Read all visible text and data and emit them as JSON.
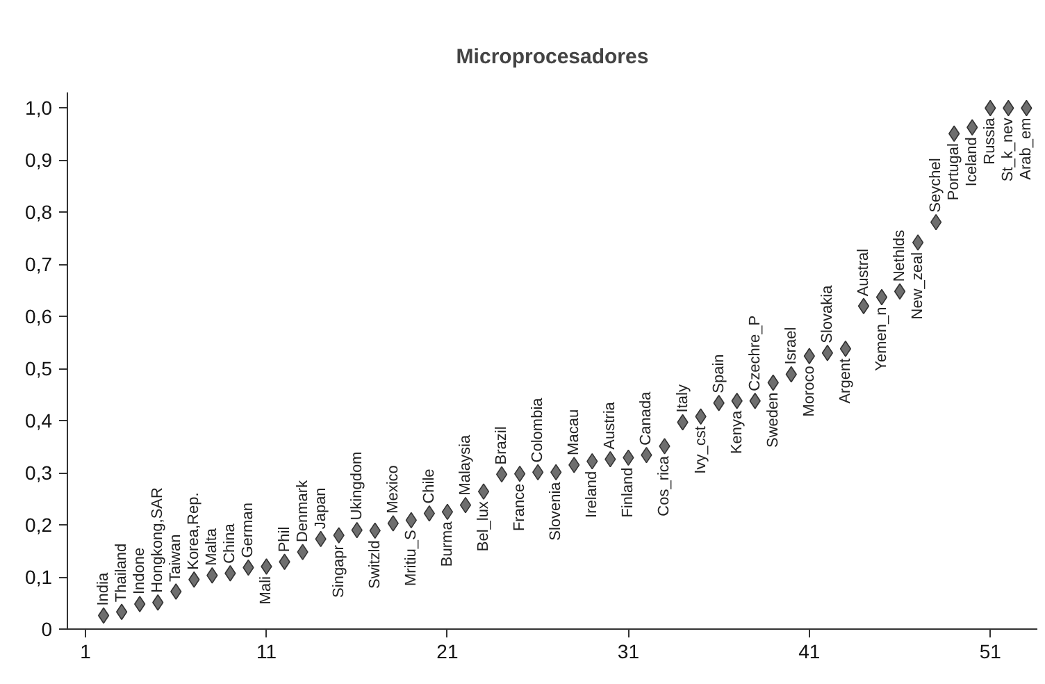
{
  "chart_data": {
    "type": "scatter",
    "title": "Microprocesadores",
    "x": [
      2,
      3,
      4,
      5,
      6,
      7,
      8,
      9,
      10,
      11,
      12,
      13,
      14,
      15,
      16,
      17,
      18,
      19,
      20,
      21,
      22,
      23,
      24,
      25,
      26,
      27,
      28,
      29,
      30,
      31,
      32,
      33,
      34,
      35,
      36,
      37,
      38,
      39,
      40,
      41,
      42,
      43,
      44,
      45,
      46,
      47,
      48,
      49,
      50,
      51,
      52,
      53
    ],
    "values": [
      0.026,
      0.033,
      0.048,
      0.051,
      0.072,
      0.095,
      0.103,
      0.107,
      0.118,
      0.12,
      0.129,
      0.148,
      0.173,
      0.18,
      0.19,
      0.189,
      0.203,
      0.209,
      0.222,
      0.225,
      0.238,
      0.264,
      0.297,
      0.298,
      0.301,
      0.301,
      0.315,
      0.322,
      0.326,
      0.329,
      0.334,
      0.351,
      0.397,
      0.408,
      0.434,
      0.438,
      0.438,
      0.473,
      0.489,
      0.524,
      0.53,
      0.538,
      0.62,
      0.637,
      0.648,
      0.742,
      0.781,
      0.951,
      0.963,
      1.0,
      1.0,
      1.0
    ],
    "color": "#6e6e6e",
    "marker": "diamond",
    "grid": false,
    "xlim": [
      0,
      53.6
    ],
    "ylim": [
      0,
      1.03
    ],
    "xticks": [
      1,
      11,
      21,
      31,
      41,
      51
    ],
    "yticks": [
      0,
      {
        "value": 0.1,
        "label": "0,1"
      },
      {
        "value": 0.2,
        "label": "0,2"
      },
      {
        "value": 0.3,
        "label": "0,3"
      },
      {
        "value": 0.4,
        "label": "0,4"
      },
      {
        "value": 0.5,
        "label": "0,5"
      },
      {
        "value": 0.6,
        "label": "0,6"
      },
      {
        "value": 0.7,
        "label": "0,7"
      },
      {
        "value": 0.8,
        "label": "0,8"
      },
      {
        "value": 0.9,
        "label": "0,9"
      },
      {
        "value": 1.0,
        "label": "1,0"
      }
    ],
    "annotations": [
      {
        "text": "India",
        "x": 2,
        "y": 0.026
      },
      {
        "text": "Thailand",
        "x": 3,
        "y": 0.033
      },
      {
        "text": "Indone",
        "x": 4,
        "y": 0.048
      },
      {
        "text": "Hongkong,SAR",
        "x": 5,
        "y": 0.051
      },
      {
        "text": "Taiwan",
        "x": 6,
        "y": 0.072
      },
      {
        "text": "Korea,Rep.",
        "x": 7,
        "y": 0.095
      },
      {
        "text": "Malta",
        "x": 8,
        "y": 0.103
      },
      {
        "text": "China",
        "x": 9,
        "y": 0.107
      },
      {
        "text": "German",
        "x": 10,
        "y": 0.118
      },
      {
        "text": "Mali",
        "x": 11,
        "y": 0.12
      },
      {
        "text": "Phil",
        "x": 12,
        "y": 0.129
      },
      {
        "text": "Denmark",
        "x": 13,
        "y": 0.148
      },
      {
        "text": "Japan",
        "x": 14,
        "y": 0.173
      },
      {
        "text": "Singapr",
        "x": 15,
        "y": 0.18
      },
      {
        "text": "Ukingdom",
        "x": 16,
        "y": 0.19
      },
      {
        "text": "Switzld",
        "x": 17,
        "y": 0.189
      },
      {
        "text": "Mexico",
        "x": 18,
        "y": 0.203
      },
      {
        "text": "Mritiu_S",
        "x": 19,
        "y": 0.209
      },
      {
        "text": "Chile",
        "x": 20,
        "y": 0.222
      },
      {
        "text": "Burma",
        "x": 21,
        "y": 0.225
      },
      {
        "text": "Malaysia",
        "x": 22,
        "y": 0.238
      },
      {
        "text": "Bel_lux",
        "x": 23,
        "y": 0.264
      },
      {
        "text": "Brazil",
        "x": 24,
        "y": 0.297
      },
      {
        "text": "France",
        "x": 25,
        "y": 0.298
      },
      {
        "text": "Colombia",
        "x": 26,
        "y": 0.301
      },
      {
        "text": "Slovenia",
        "x": 27,
        "y": 0.301
      },
      {
        "text": "Macau",
        "x": 28,
        "y": 0.315
      },
      {
        "text": "Ireland",
        "x": 29,
        "y": 0.322
      },
      {
        "text": "Austria",
        "x": 30,
        "y": 0.326
      },
      {
        "text": "Finland",
        "x": 31,
        "y": 0.329
      },
      {
        "text": "Canada",
        "x": 32,
        "y": 0.334
      },
      {
        "text": "Cos_rica",
        "x": 33,
        "y": 0.351
      },
      {
        "text": "Italy",
        "x": 34,
        "y": 0.397
      },
      {
        "text": "Ivy_cst",
        "x": 35,
        "y": 0.408
      },
      {
        "text": "Spain",
        "x": 36,
        "y": 0.434
      },
      {
        "text": "Kenya",
        "x": 37,
        "y": 0.438
      },
      {
        "text": "Czechre_P",
        "x": 38,
        "y": 0.438
      },
      {
        "text": "Sweden",
        "x": 39,
        "y": 0.473
      },
      {
        "text": "Israel",
        "x": 40,
        "y": 0.489
      },
      {
        "text": "Moroco",
        "x": 41,
        "y": 0.524
      },
      {
        "text": "Slovakia",
        "x": 42,
        "y": 0.53
      },
      {
        "text": "Argent",
        "x": 43,
        "y": 0.538
      },
      {
        "text": "Austral",
        "x": 44,
        "y": 0.62
      },
      {
        "text": "Yemen_n",
        "x": 45,
        "y": 0.637
      },
      {
        "text": "Nethlds",
        "x": 46,
        "y": 0.648
      },
      {
        "text": "New_zeal",
        "x": 47,
        "y": 0.742
      },
      {
        "text": "Seychel",
        "x": 48,
        "y": 0.781
      },
      {
        "text": "Portugal",
        "x": 49,
        "y": 0.951
      },
      {
        "text": "Iceland",
        "x": 50,
        "y": 0.963
      },
      {
        "text": "Russia",
        "x": 51,
        "y": 1.0
      },
      {
        "text": "St_k_nev",
        "x": 52,
        "y": 1.0
      },
      {
        "text": "Arab_em",
        "x": 53,
        "y": 1.0
      }
    ]
  }
}
